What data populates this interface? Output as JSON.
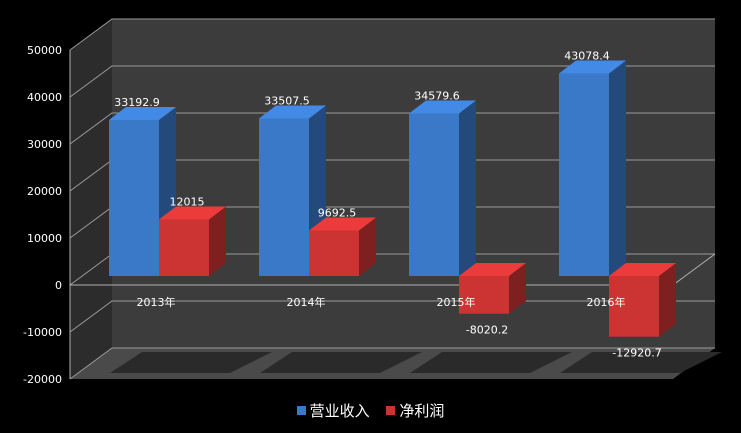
{
  "chart_data": {
    "type": "bar",
    "categories": [
      "2013年",
      "2014年",
      "2015年",
      "2016年"
    ],
    "series": [
      {
        "name": "营业收入",
        "values": [
          33192.9,
          33507.5,
          34579.6,
          43078.4
        ],
        "color": "#3a78c8"
      },
      {
        "name": "净利润",
        "values": [
          12015,
          9692.5,
          -8020.2,
          -12920.7
        ],
        "color": "#cc3333"
      }
    ],
    "data_labels": [
      [
        "33192.9",
        "33507.5",
        "34579.6",
        "43078.4"
      ],
      [
        "12015",
        "9692.5",
        "-8020.2",
        "-12920.7"
      ]
    ],
    "y_ticks": [
      "-20000",
      "-10000",
      "0",
      "10000",
      "20000",
      "30000",
      "40000",
      "50000"
    ],
    "ylim": [
      -20000,
      50000
    ],
    "grid": true,
    "legend": "bottom",
    "background": "#3c3c3c",
    "title": "",
    "xlabel": "",
    "ylabel": ""
  }
}
